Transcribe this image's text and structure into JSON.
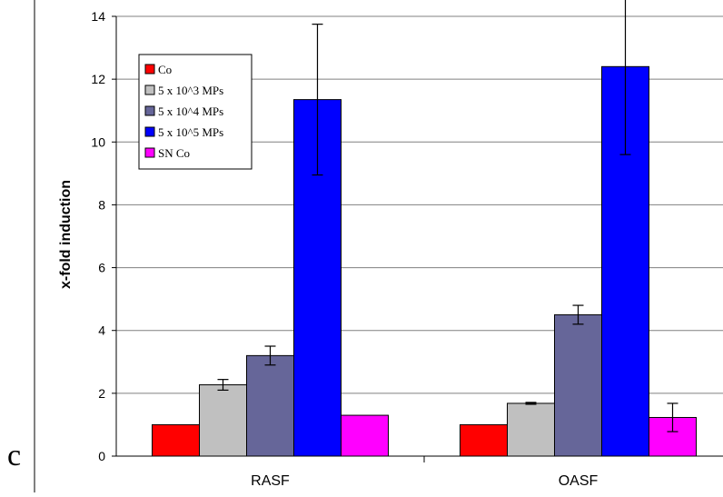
{
  "panel_label": "c",
  "chart_data": {
    "type": "bar",
    "categories": [
      "RASF",
      "OASF"
    ],
    "ylabel": "x-fold induction",
    "xlabel": "",
    "ylim": [
      0,
      14
    ],
    "yticks": [
      0,
      2,
      4,
      6,
      8,
      10,
      12,
      14
    ],
    "grid": true,
    "legend_position": "top-left",
    "series": [
      {
        "name": "Co",
        "color": "#ff0000",
        "values": [
          1.0,
          1.0
        ],
        "errors": [
          0,
          0
        ]
      },
      {
        "name": "5 x 10^3 MPs",
        "color": "#c0c0c0",
        "values": [
          2.27,
          1.68
        ],
        "errors": [
          0.17,
          0.03
        ]
      },
      {
        "name": "5 x 10^4 MPs",
        "color": "#666699",
        "values": [
          3.2,
          4.5
        ],
        "errors": [
          0.3,
          0.3
        ]
      },
      {
        "name": "5 x 10^5 MPs",
        "color": "#0000ff",
        "values": [
          11.35,
          12.4
        ],
        "errors": [
          2.4,
          2.8
        ]
      },
      {
        "name": "SN Co",
        "color": "#ff00ff",
        "values": [
          1.3,
          1.23
        ],
        "errors": [
          0,
          0.45
        ]
      }
    ]
  }
}
